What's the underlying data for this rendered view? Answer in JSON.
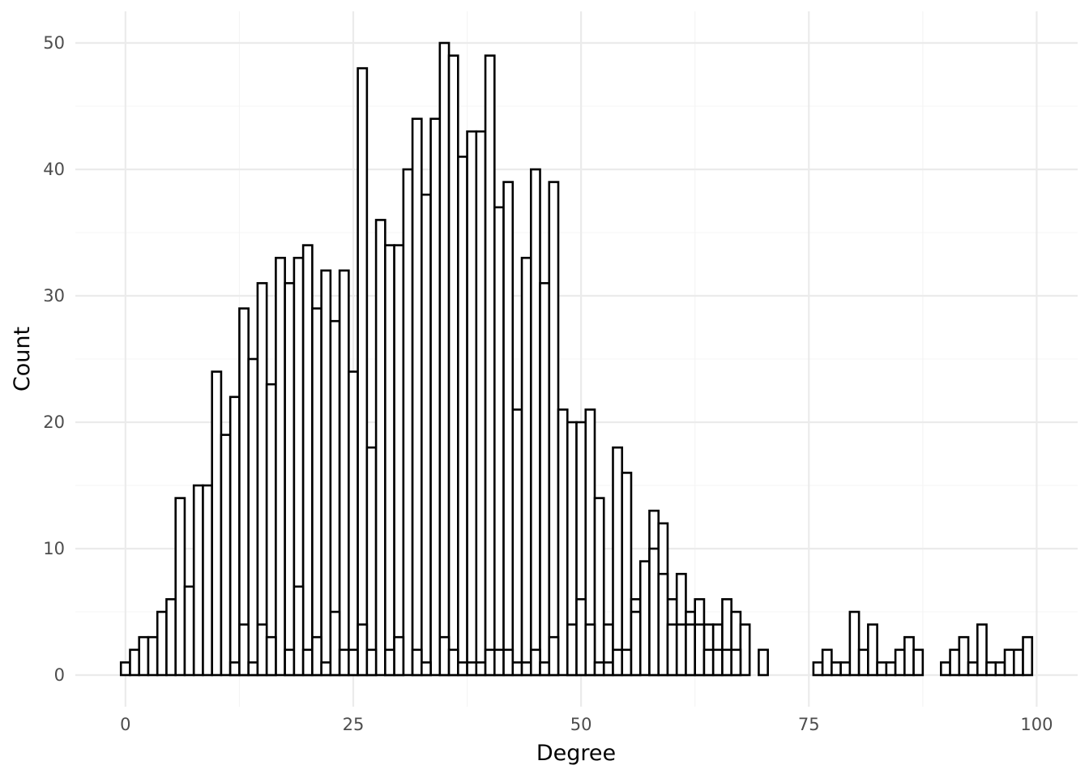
{
  "chart_data": {
    "type": "bar",
    "xlabel": "Degree",
    "ylabel": "Count",
    "xlim": [
      -5.5,
      104.5
    ],
    "ylim": [
      -2.5,
      52.5
    ],
    "x_ticks": [
      0,
      25,
      50,
      75,
      100
    ],
    "y_ticks": [
      0,
      10,
      20,
      30,
      40,
      50
    ],
    "grid": true,
    "bar_fill": "#ffffff",
    "bar_stroke": "#000000",
    "series": [
      {
        "values": [
          {
            "x": 0,
            "y": 1
          },
          {
            "x": 1,
            "y": 2
          },
          {
            "x": 2,
            "y": 3
          },
          {
            "x": 3,
            "y": 3
          },
          {
            "x": 4,
            "y": 5
          },
          {
            "x": 5,
            "y": 6
          },
          {
            "x": 6,
            "y": 14
          },
          {
            "x": 7,
            "y": 7
          },
          {
            "x": 8,
            "y": 15
          },
          {
            "x": 9,
            "y": 15
          },
          {
            "x": 10,
            "y": 24
          },
          {
            "x": 11,
            "y": 19
          },
          {
            "x": 12,
            "y": 22
          },
          {
            "x": 13,
            "y": 29
          },
          {
            "x": 14,
            "y": 25
          },
          {
            "x": 15,
            "y": 31
          },
          {
            "x": 16,
            "y": 23
          },
          {
            "x": 17,
            "y": 33
          },
          {
            "x": 18,
            "y": 31
          },
          {
            "x": 19,
            "y": 33
          },
          {
            "x": 20,
            "y": 34
          },
          {
            "x": 21,
            "y": 29
          },
          {
            "x": 22,
            "y": 32
          },
          {
            "x": 23,
            "y": 28
          },
          {
            "x": 24,
            "y": 32
          },
          {
            "x": 25,
            "y": 24
          },
          {
            "x": 26,
            "y": 48
          },
          {
            "x": 27,
            "y": 18
          },
          {
            "x": 28,
            "y": 36
          },
          {
            "x": 29,
            "y": 34
          },
          {
            "x": 30,
            "y": 34
          },
          {
            "x": 31,
            "y": 40
          },
          {
            "x": 32,
            "y": 44
          },
          {
            "x": 33,
            "y": 38
          },
          {
            "x": 34,
            "y": 44
          },
          {
            "x": 35,
            "y": 50
          },
          {
            "x": 36,
            "y": 49
          },
          {
            "x": 37,
            "y": 41
          },
          {
            "x": 38,
            "y": 43
          },
          {
            "x": 39,
            "y": 43
          },
          {
            "x": 40,
            "y": 49
          },
          {
            "x": 41,
            "y": 37
          },
          {
            "x": 42,
            "y": 39
          },
          {
            "x": 43,
            "y": 21
          },
          {
            "x": 44,
            "y": 33
          },
          {
            "x": 45,
            "y": 40
          },
          {
            "x": 46,
            "y": 31
          },
          {
            "x": 47,
            "y": 39
          },
          {
            "x": 48,
            "y": 21
          },
          {
            "x": 49,
            "y": 20
          },
          {
            "x": 50,
            "y": 20
          },
          {
            "x": 51,
            "y": 21
          },
          {
            "x": 52,
            "y": 14
          },
          {
            "x": 53,
            "y": 4
          },
          {
            "x": 54,
            "y": 18
          },
          {
            "x": 55,
            "y": 16
          },
          {
            "x": 56,
            "y": 6
          },
          {
            "x": 57,
            "y": 9
          },
          {
            "x": 58,
            "y": 13
          },
          {
            "x": 59,
            "y": 12
          },
          {
            "x": 60,
            "y": 6
          },
          {
            "x": 61,
            "y": 8
          },
          {
            "x": 62,
            "y": 5
          },
          {
            "x": 63,
            "y": 6
          },
          {
            "x": 64,
            "y": 4
          },
          {
            "x": 65,
            "y": 4
          },
          {
            "x": 66,
            "y": 6
          },
          {
            "x": 67,
            "y": 5
          },
          {
            "x": 68,
            "y": 4
          },
          {
            "x": 70,
            "y": 2
          },
          {
            "x": 76,
            "y": 1
          },
          {
            "x": 77,
            "y": 2
          },
          {
            "x": 78,
            "y": 1
          },
          {
            "x": 79,
            "y": 1
          },
          {
            "x": 80,
            "y": 5
          },
          {
            "x": 81,
            "y": 2
          },
          {
            "x": 82,
            "y": 4
          },
          {
            "x": 83,
            "y": 1
          },
          {
            "x": 84,
            "y": 1
          },
          {
            "x": 85,
            "y": 2
          },
          {
            "x": 86,
            "y": 3
          },
          {
            "x": 87,
            "y": 2
          },
          {
            "x": 90,
            "y": 1
          },
          {
            "x": 91,
            "y": 2
          },
          {
            "x": 92,
            "y": 3
          },
          {
            "x": 93,
            "y": 1
          },
          {
            "x": 94,
            "y": 4
          },
          {
            "x": 95,
            "y": 1
          },
          {
            "x": 96,
            "y": 1
          },
          {
            "x": 97,
            "y": 2
          },
          {
            "x": 98,
            "y": 2
          },
          {
            "x": 99,
            "y": 3
          }
        ]
      },
      {
        "values": [
          {
            "x": 12,
            "y": 1
          },
          {
            "x": 13,
            "y": 4
          },
          {
            "x": 14,
            "y": 1
          },
          {
            "x": 15,
            "y": 4
          },
          {
            "x": 16,
            "y": 3
          },
          {
            "x": 18,
            "y": 2
          },
          {
            "x": 19,
            "y": 7
          },
          {
            "x": 20,
            "y": 2
          },
          {
            "x": 21,
            "y": 3
          },
          {
            "x": 22,
            "y": 1
          },
          {
            "x": 23,
            "y": 5
          },
          {
            "x": 24,
            "y": 2
          },
          {
            "x": 25,
            "y": 2
          },
          {
            "x": 26,
            "y": 4
          },
          {
            "x": 27,
            "y": 2
          },
          {
            "x": 29,
            "y": 2
          },
          {
            "x": 30,
            "y": 3
          },
          {
            "x": 32,
            "y": 2
          },
          {
            "x": 33,
            "y": 1
          },
          {
            "x": 35,
            "y": 3
          },
          {
            "x": 36,
            "y": 2
          },
          {
            "x": 37,
            "y": 1
          },
          {
            "x": 38,
            "y": 1
          },
          {
            "x": 39,
            "y": 1
          },
          {
            "x": 40,
            "y": 2
          },
          {
            "x": 41,
            "y": 2
          },
          {
            "x": 42,
            "y": 2
          },
          {
            "x": 43,
            "y": 1
          },
          {
            "x": 44,
            "y": 1
          },
          {
            "x": 45,
            "y": 2
          },
          {
            "x": 46,
            "y": 1
          },
          {
            "x": 47,
            "y": 3
          },
          {
            "x": 49,
            "y": 4
          },
          {
            "x": 50,
            "y": 6
          },
          {
            "x": 51,
            "y": 4
          },
          {
            "x": 52,
            "y": 1
          },
          {
            "x": 53,
            "y": 1
          },
          {
            "x": 54,
            "y": 2
          },
          {
            "x": 55,
            "y": 2
          },
          {
            "x": 56,
            "y": 5
          },
          {
            "x": 58,
            "y": 10
          },
          {
            "x": 59,
            "y": 8
          },
          {
            "x": 60,
            "y": 4
          },
          {
            "x": 61,
            "y": 4
          },
          {
            "x": 62,
            "y": 4
          },
          {
            "x": 63,
            "y": 4
          },
          {
            "x": 64,
            "y": 2
          },
          {
            "x": 65,
            "y": 2
          },
          {
            "x": 66,
            "y": 2
          },
          {
            "x": 67,
            "y": 2
          }
        ]
      }
    ]
  }
}
